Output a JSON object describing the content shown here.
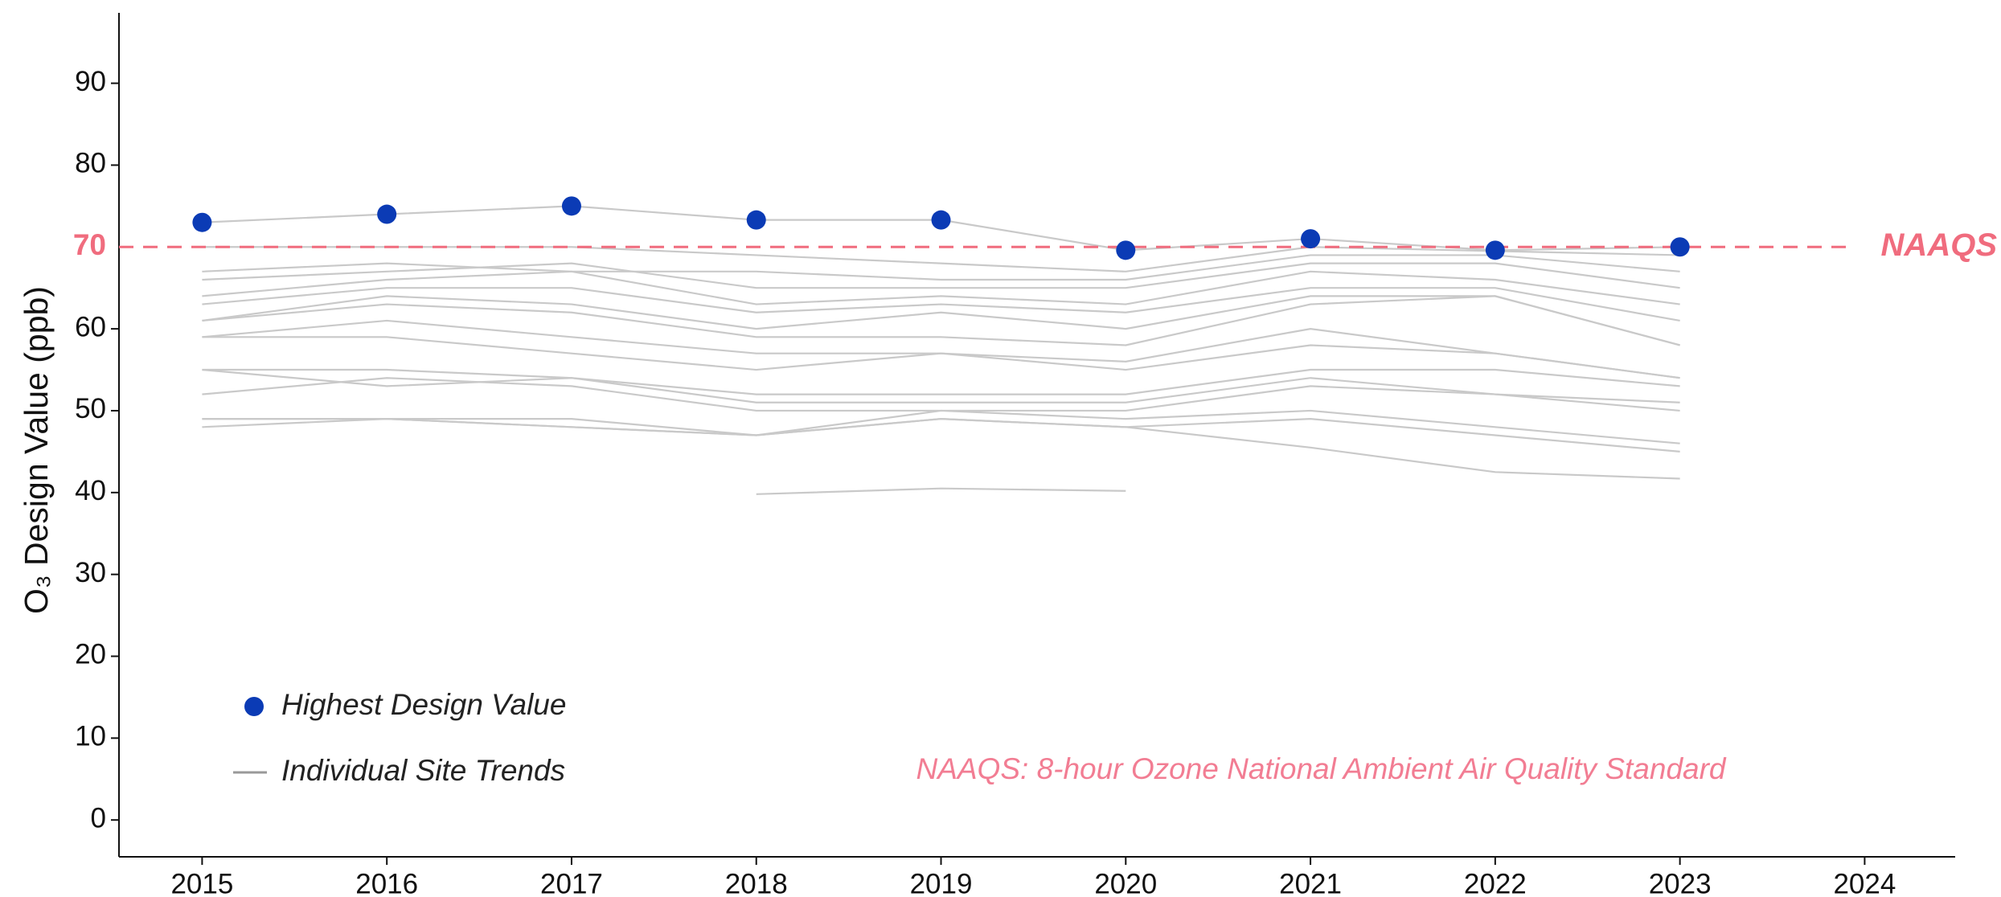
{
  "chart_data": {
    "type": "line",
    "ylabel": "O₃ Design Value (ppb)",
    "x": [
      2015,
      2016,
      2017,
      2018,
      2019,
      2020,
      2021,
      2022,
      2023
    ],
    "xlim": [
      2014.55,
      2024.49
    ],
    "xticks": [
      2015,
      2016,
      2017,
      2018,
      2019,
      2020,
      2021,
      2022,
      2023,
      2024
    ],
    "ylim": [
      -4.5,
      98.6
    ],
    "yticks": [
      0,
      10,
      20,
      30,
      40,
      50,
      60,
      80,
      90
    ],
    "reference": {
      "value": 70,
      "label": "NAAQS",
      "color": "#f06c7e"
    },
    "annotation": "NAAQS: 8-hour Ozone National Ambient Air Quality Standard",
    "series": [
      {
        "name": "Highest Design Value",
        "color": "#0b3bb5",
        "values": [
          73,
          74,
          75,
          73.3,
          73.3,
          69.6,
          71,
          69.6,
          70
        ]
      }
    ],
    "site_trends": {
      "name": "Individual Site Trends",
      "color": "#c9c9c9",
      "lines": [
        [
          73,
          74,
          75,
          73.3,
          73.3,
          69.6,
          71,
          69.6,
          70
        ],
        [
          70,
          70,
          70,
          69,
          68,
          67,
          70,
          69.5,
          69
        ],
        [
          67,
          68,
          67,
          67,
          66,
          66,
          69,
          69,
          67
        ],
        [
          66,
          67,
          68,
          65,
          65,
          65,
          68,
          68,
          65
        ],
        [
          64,
          66,
          67,
          63,
          64,
          63,
          67,
          66,
          63
        ],
        [
          63,
          65,
          65,
          62,
          63,
          62,
          65,
          65,
          61
        ],
        [
          61,
          64,
          63,
          60,
          62,
          60,
          64,
          64,
          58
        ],
        [
          61,
          63,
          62,
          59,
          59,
          58,
          63,
          64,
          58
        ],
        [
          59,
          61,
          59,
          57,
          57,
          56,
          60,
          57,
          54
        ],
        [
          59,
          59,
          57,
          55,
          57,
          55,
          58,
          57,
          54
        ],
        [
          55,
          55,
          54,
          52,
          52,
          52,
          55,
          55,
          53
        ],
        [
          55,
          53,
          54,
          51,
          51,
          51,
          54,
          52,
          51
        ],
        [
          52,
          54,
          53,
          50,
          50,
          50,
          53,
          52,
          50
        ],
        [
          49,
          49,
          48,
          47,
          50,
          49,
          50,
          48,
          46
        ],
        [
          48,
          49,
          48,
          47,
          49,
          48,
          49,
          47,
          45
        ],
        [
          49,
          49,
          49,
          47,
          49,
          48,
          45.5,
          42.5,
          41.7
        ],
        [
          null,
          null,
          null,
          39.8,
          40.5,
          40.2,
          null,
          null,
          null
        ]
      ]
    }
  }
}
